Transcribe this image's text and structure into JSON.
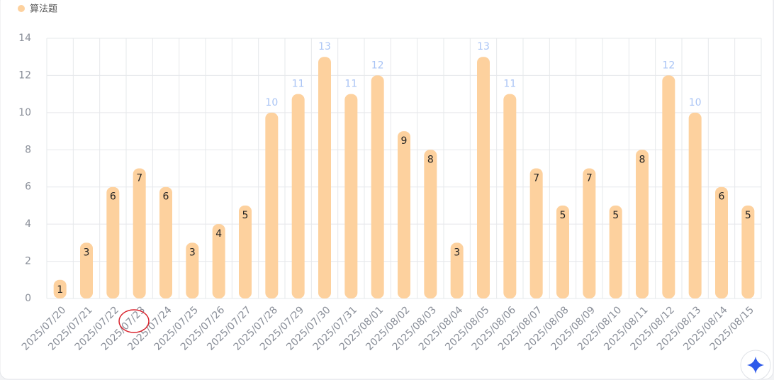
{
  "chart_data": {
    "type": "bar",
    "categories": [
      "2025/07/20",
      "2025/07/21",
      "2025/07/22",
      "2025/07/23",
      "2025/07/24",
      "2025/07/25",
      "2025/07/26",
      "2025/07/27",
      "2025/07/28",
      "2025/07/29",
      "2025/07/30",
      "2025/07/31",
      "2025/08/01",
      "2025/08/02",
      "2025/08/03",
      "2025/08/04",
      "2025/08/05",
      "2025/08/06",
      "2025/08/07",
      "2025/08/08",
      "2025/08/09",
      "2025/08/10",
      "2025/08/11",
      "2025/08/12",
      "2025/08/13",
      "2025/08/14",
      "2025/08/15"
    ],
    "series": [
      {
        "name": "算法题",
        "color": "#fdd19e",
        "values": [
          1,
          3,
          6,
          7,
          6,
          3,
          4,
          5,
          10,
          11,
          13,
          11,
          12,
          9,
          8,
          3,
          13,
          11,
          7,
          5,
          7,
          5,
          8,
          12,
          10,
          6,
          5
        ]
      }
    ],
    "ylim": [
      0,
      14
    ],
    "yticks": [
      0,
      2,
      4,
      6,
      8,
      10,
      12,
      14
    ],
    "grid": true,
    "legend": "top-left"
  }
}
